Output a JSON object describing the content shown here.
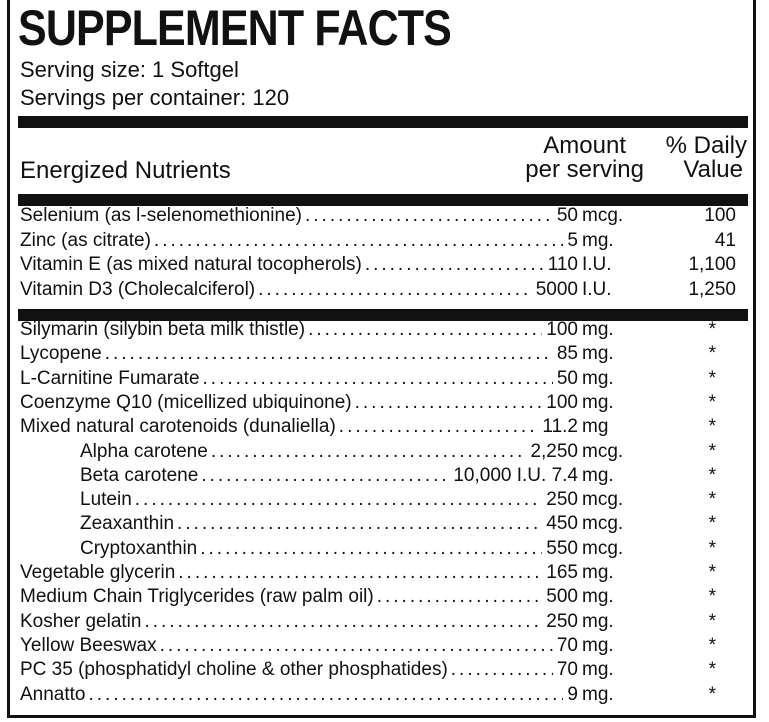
{
  "title": "SUPPLEMENT FACTS",
  "serving_size": "Serving size: 1 Softgel",
  "servings_per_container": "Servings per container: 120",
  "header": {
    "nutrients": "Energized Nutrients",
    "amount_line1": "Amount",
    "amount_line2": "per serving",
    "dv_line1": "% Daily",
    "dv_line2": "Value"
  },
  "section1": [
    {
      "name": "Selenium (as l-selenomethionine)",
      "amount": "50",
      "unit": "mcg.",
      "dv": "100"
    },
    {
      "name": "Zinc (as citrate)",
      "amount": "5",
      "unit": "mg.",
      "dv": "41"
    },
    {
      "name": "Vitamin E (as mixed natural tocopherols)",
      "amount": "110",
      "unit": "I.U.",
      "dv": "1,100"
    },
    {
      "name": "Vitamin D3 (Cholecalciferol)",
      "amount": "5000",
      "unit": "I.U.",
      "dv": "1,250"
    }
  ],
  "section2": [
    {
      "name": "Silymarin (silybin beta milk thistle)",
      "amount": "100",
      "unit": "mg.",
      "dv": "*",
      "indent": false
    },
    {
      "name": "Lycopene",
      "amount": "85",
      "unit": "mg.",
      "dv": "*",
      "indent": false
    },
    {
      "name": "L-Carnitine Fumarate",
      "amount": "50",
      "unit": "mg.",
      "dv": "*",
      "indent": false
    },
    {
      "name": "Coenzyme Q10 (micellized ubiquinone)",
      "amount": "100",
      "unit": "mg.",
      "dv": "*",
      "indent": false
    },
    {
      "name": "Mixed natural carotenoids (dunaliella)",
      "amount": "11.2",
      "unit": "mg",
      "dv": "*",
      "indent": false
    },
    {
      "name": "Alpha carotene",
      "amount": "2,250",
      "unit": "mcg.",
      "dv": "*",
      "indent": true
    },
    {
      "name": "Beta carotene",
      "amount": "10,000 I.U. 7.4",
      "unit": "mg.",
      "dv": "*",
      "indent": true
    },
    {
      "name": "Lutein",
      "amount": "250",
      "unit": "mcg.",
      "dv": "*",
      "indent": true
    },
    {
      "name": "Zeaxanthin",
      "amount": "450",
      "unit": "mcg.",
      "dv": "*",
      "indent": true
    },
    {
      "name": "Cryptoxanthin",
      "amount": "550",
      "unit": "mcg.",
      "dv": "*",
      "indent": true
    },
    {
      "name": "Vegetable glycerin",
      "amount": "165",
      "unit": "mg.",
      "dv": "*",
      "indent": false
    },
    {
      "name": "Medium Chain Triglycerides (raw palm oil)",
      "amount": "500",
      "unit": "mg.",
      "dv": "*",
      "indent": false
    },
    {
      "name": "Kosher gelatin",
      "amount": "250",
      "unit": "mg.",
      "dv": "*",
      "indent": false
    },
    {
      "name": "Yellow Beeswax",
      "amount": "70",
      "unit": "mg.",
      "dv": "*",
      "indent": false
    },
    {
      "name": "PC 35 (phosphatidyl choline & other phosphatides)",
      "amount": "70",
      "unit": "mg.",
      "dv": "*",
      "indent": false
    },
    {
      "name": "Annatto",
      "amount": "9",
      "unit": "mg.",
      "dv": "*",
      "indent": false
    }
  ]
}
